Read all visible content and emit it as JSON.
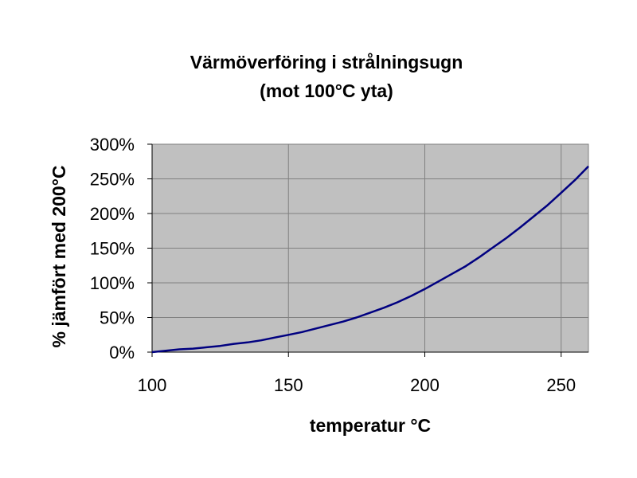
{
  "chart_data": {
    "type": "line",
    "title": "Värmöverföring i strålningsugn",
    "subtitle": "(mot 100°C yta)",
    "xlabel": "temperatur °C",
    "ylabel": "% jämfört med 200°C",
    "xlim": [
      100,
      260
    ],
    "ylim": [
      0,
      3
    ],
    "x_ticks": [
      100,
      150,
      200,
      250
    ],
    "x_tick_labels": [
      "100",
      "150",
      "200",
      "250"
    ],
    "y_ticks": [
      0,
      0.5,
      1,
      1.5,
      2,
      2.5,
      3
    ],
    "y_tick_labels": [
      "0%",
      "50%",
      "100%",
      "150%",
      "200%",
      "250%",
      "300%"
    ],
    "grid": true,
    "plot_background": "#c0c0c0",
    "line_color": "#000080",
    "series": [
      {
        "x": [
          100,
          110,
          115,
          120,
          125,
          130,
          135,
          140,
          145,
          150,
          155,
          160,
          165,
          170,
          175,
          180,
          185,
          190,
          195,
          200,
          205,
          210,
          215,
          220,
          225,
          230,
          235,
          240,
          245,
          250,
          255,
          260
        ],
        "values": [
          0.0,
          0.04,
          0.05,
          0.07,
          0.09,
          0.12,
          0.14,
          0.17,
          0.21,
          0.25,
          0.29,
          0.34,
          0.39,
          0.44,
          0.5,
          0.57,
          0.64,
          0.72,
          0.81,
          0.91,
          1.02,
          1.13,
          1.24,
          1.37,
          1.51,
          1.65,
          1.8,
          1.96,
          2.12,
          2.3,
          2.48,
          2.68
        ]
      }
    ]
  }
}
